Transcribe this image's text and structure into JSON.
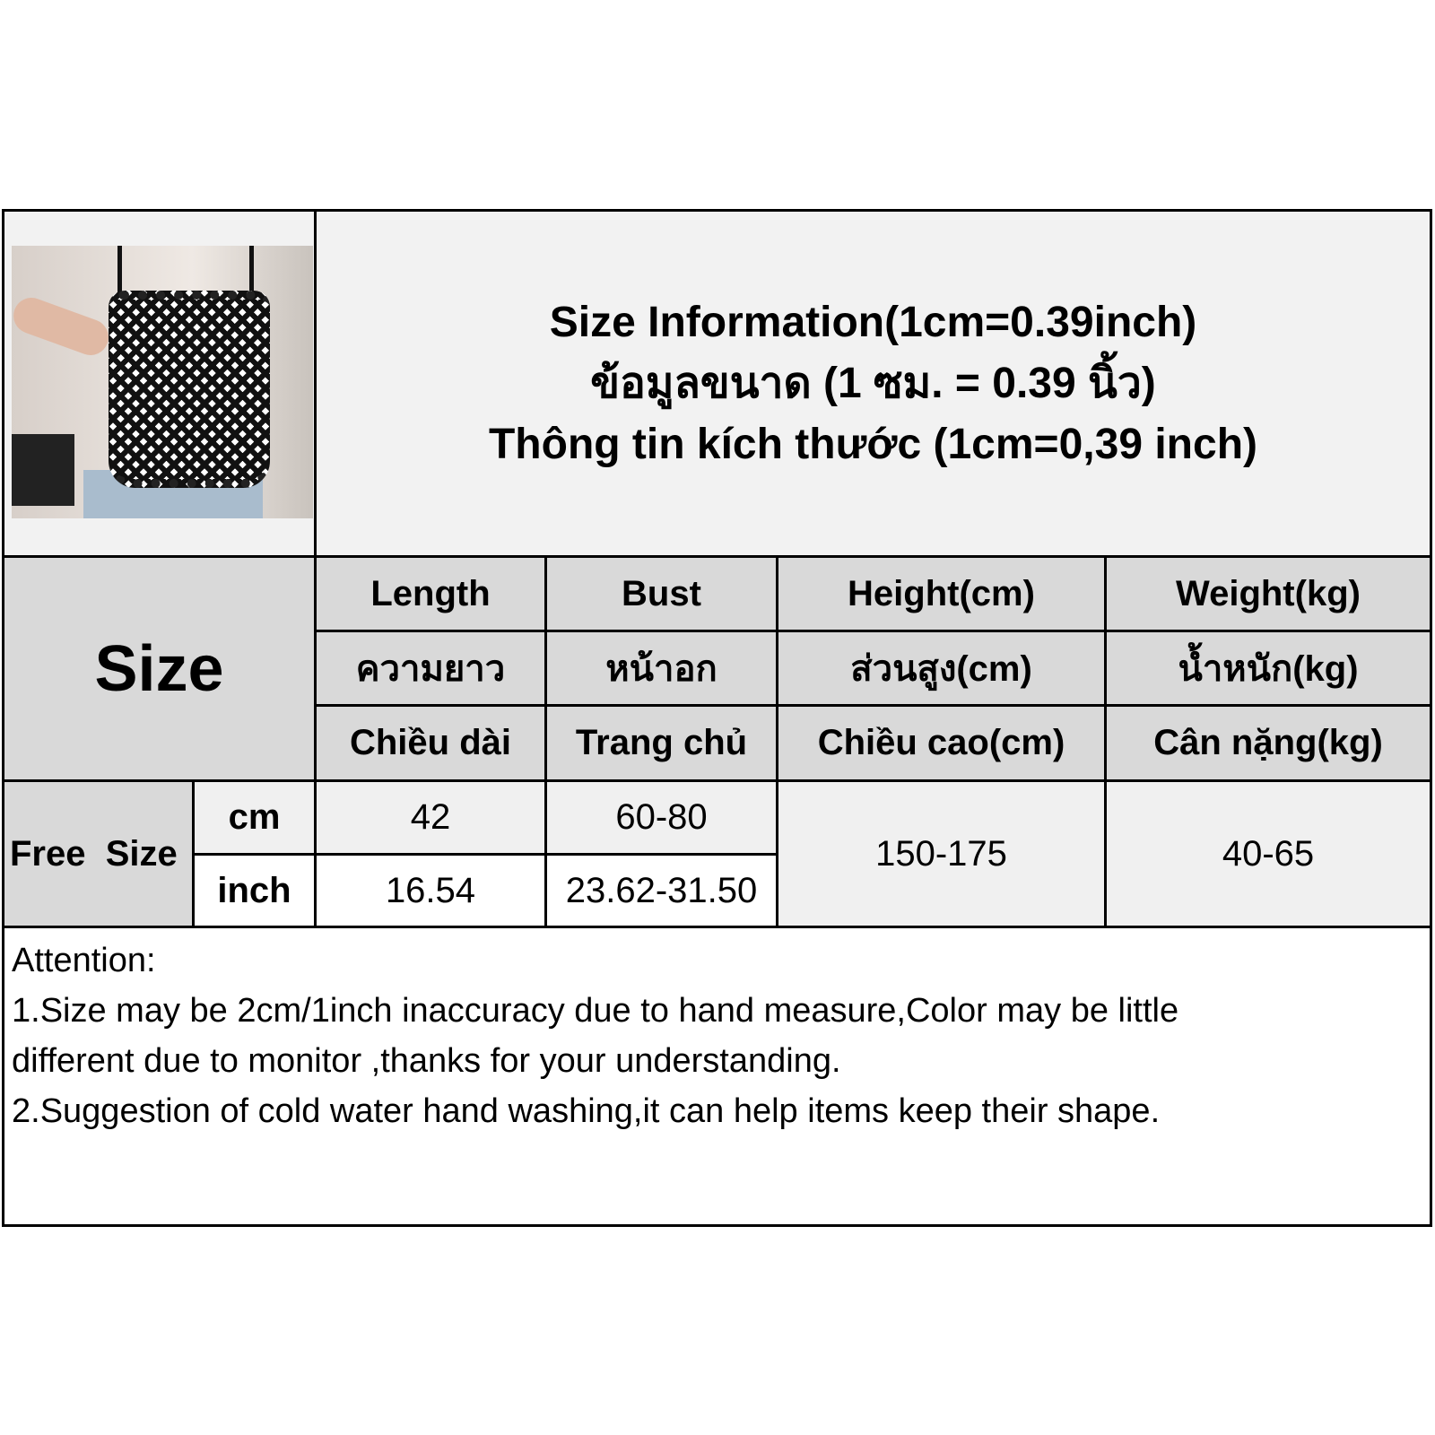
{
  "title_lines": [
    "Size Information(1cm=0.39inch)",
    "ข้อมูลขนาด (1 ซม. = 0.39 นิ้ว)",
    "Thông tin kích thước (1cm=0,39 inch)"
  ],
  "size_label": "Size",
  "columns": [
    {
      "en": "Length",
      "th": "ความยาว",
      "vi": "Chiều dài"
    },
    {
      "en": "Bust",
      "th": "หน้าอก",
      "vi": "Trang chủ"
    },
    {
      "en": "Height(cm)",
      "th": "ส่วนสูง(cm)",
      "vi": "Chiều cao(cm)"
    },
    {
      "en": "Weight(kg)",
      "th": "น้ำหนัก(kg)",
      "vi": "Cân nặng(kg)"
    }
  ],
  "rows": {
    "size_name": "Free  Size",
    "cm": {
      "unit": "cm",
      "length": "42",
      "bust": "60-80"
    },
    "inch": {
      "unit": "inch",
      "length": "16.54",
      "bust": "23.62-31.50"
    },
    "height": "150-175",
    "weight": "40-65"
  },
  "attention": {
    "heading": "Attention:",
    "line1": "1.Size may be 2cm/1inch inaccuracy due to hand measure,Color may be little",
    "line2": "different due to monitor ,thanks for your understanding.",
    "line3": "2.Suggestion of cold water hand washing,it can help items keep their shape."
  }
}
